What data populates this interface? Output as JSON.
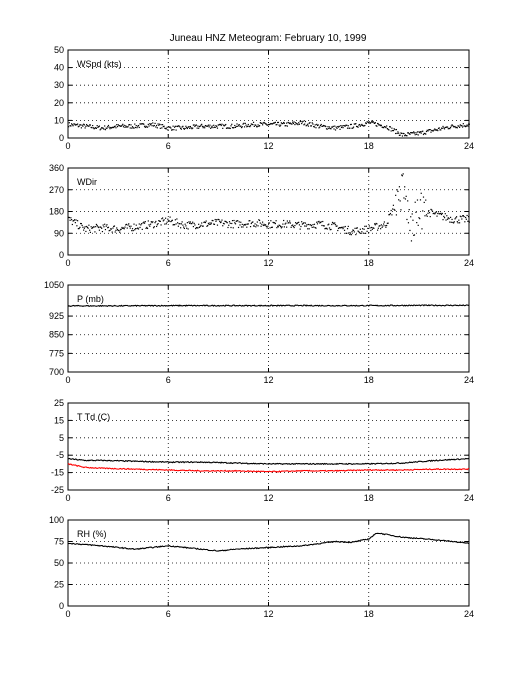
{
  "title": "Juneau HNZ Meteogram:  February 10, 1999",
  "x_ticks": [
    "0",
    "6",
    "12",
    "18",
    "24"
  ],
  "chart_data": [
    {
      "type": "line",
      "label": "WSpd (kts)",
      "xlim": [
        0,
        24
      ],
      "ylim": [
        0,
        50
      ],
      "yticks": [
        0,
        10,
        20,
        30,
        40,
        50
      ],
      "grid": true,
      "series": [
        {
          "color": "#000000",
          "style": "dots",
          "x": [
            0,
            1,
            2,
            3,
            4,
            5,
            6,
            7,
            8,
            9,
            10,
            11,
            12,
            13,
            14,
            15,
            16,
            17,
            18,
            19,
            20,
            21,
            22,
            23,
            24
          ],
          "y": [
            8,
            7,
            6,
            7,
            7,
            8,
            6,
            6,
            7,
            7,
            7,
            8,
            8,
            8,
            9,
            7,
            6,
            7,
            9,
            7,
            2,
            3,
            5,
            7,
            8
          ]
        }
      ]
    },
    {
      "type": "scatter",
      "label": "WDir",
      "xlim": [
        0,
        24
      ],
      "ylim": [
        0,
        360
      ],
      "yticks": [
        0,
        90,
        180,
        270,
        360
      ],
      "grid": true,
      "series": [
        {
          "color": "#000000",
          "style": "dots",
          "x": [
            0,
            1,
            2,
            3,
            4,
            5,
            6,
            7,
            8,
            9,
            10,
            11,
            12,
            13,
            14,
            15,
            16,
            17,
            18,
            19,
            20,
            20.5,
            21,
            22,
            23,
            24
          ],
          "y": [
            150,
            110,
            115,
            110,
            120,
            130,
            145,
            125,
            130,
            135,
            130,
            135,
            130,
            130,
            125,
            130,
            120,
            100,
            110,
            130,
            280,
            110,
            190,
            170,
            150,
            150
          ]
        }
      ]
    },
    {
      "type": "line",
      "label": "P (mb)",
      "xlim": [
        0,
        24
      ],
      "ylim": [
        700,
        1050
      ],
      "yticks": [
        700,
        775,
        850,
        925,
        1050
      ],
      "ytick_labels": [
        "700",
        "775",
        "850",
        "925",
        "1050"
      ],
      "grid": true,
      "series": [
        {
          "color": "#000000",
          "style": "line",
          "x": [
            0,
            3,
            6,
            9,
            12,
            15,
            18,
            21,
            24
          ],
          "y": [
            966,
            966,
            967,
            967,
            967,
            967,
            967,
            968,
            968
          ]
        }
      ]
    },
    {
      "type": "line",
      "label": "T Td (C)",
      "xlim": [
        0,
        24
      ],
      "ylim": [
        -25,
        25
      ],
      "yticks": [
        -25,
        -15,
        -5,
        5,
        15,
        25
      ],
      "grid": true,
      "series": [
        {
          "color": "#000000",
          "style": "line",
          "x": [
            0,
            1,
            2,
            4,
            6,
            8,
            10,
            12,
            14,
            16,
            18,
            20,
            22,
            24
          ],
          "y": [
            -7,
            -8,
            -8,
            -8.5,
            -9,
            -9,
            -9.5,
            -10,
            -10,
            -10,
            -10,
            -9.5,
            -8,
            -7
          ]
        },
        {
          "color": "#ff0000",
          "style": "line",
          "x": [
            0,
            1,
            2,
            4,
            6,
            8,
            10,
            12,
            14,
            16,
            18,
            20,
            22,
            24
          ],
          "y": [
            -10,
            -12,
            -12.5,
            -13,
            -13.5,
            -14,
            -14,
            -14.5,
            -14,
            -14,
            -13.5,
            -13.5,
            -13,
            -13
          ]
        }
      ]
    },
    {
      "type": "line",
      "label": "RH (%)",
      "xlim": [
        0,
        24
      ],
      "ylim": [
        0,
        100
      ],
      "yticks": [
        0,
        25,
        50,
        75,
        100
      ],
      "grid": true,
      "series": [
        {
          "color": "#000000",
          "style": "line",
          "x": [
            0,
            2,
            4,
            6,
            8,
            9,
            10,
            12,
            14,
            16,
            17,
            18,
            18.5,
            20,
            22,
            24
          ],
          "y": [
            73,
            70,
            66,
            70,
            66,
            64,
            66,
            68,
            70,
            75,
            74,
            78,
            85,
            80,
            77,
            73
          ]
        }
      ]
    }
  ]
}
